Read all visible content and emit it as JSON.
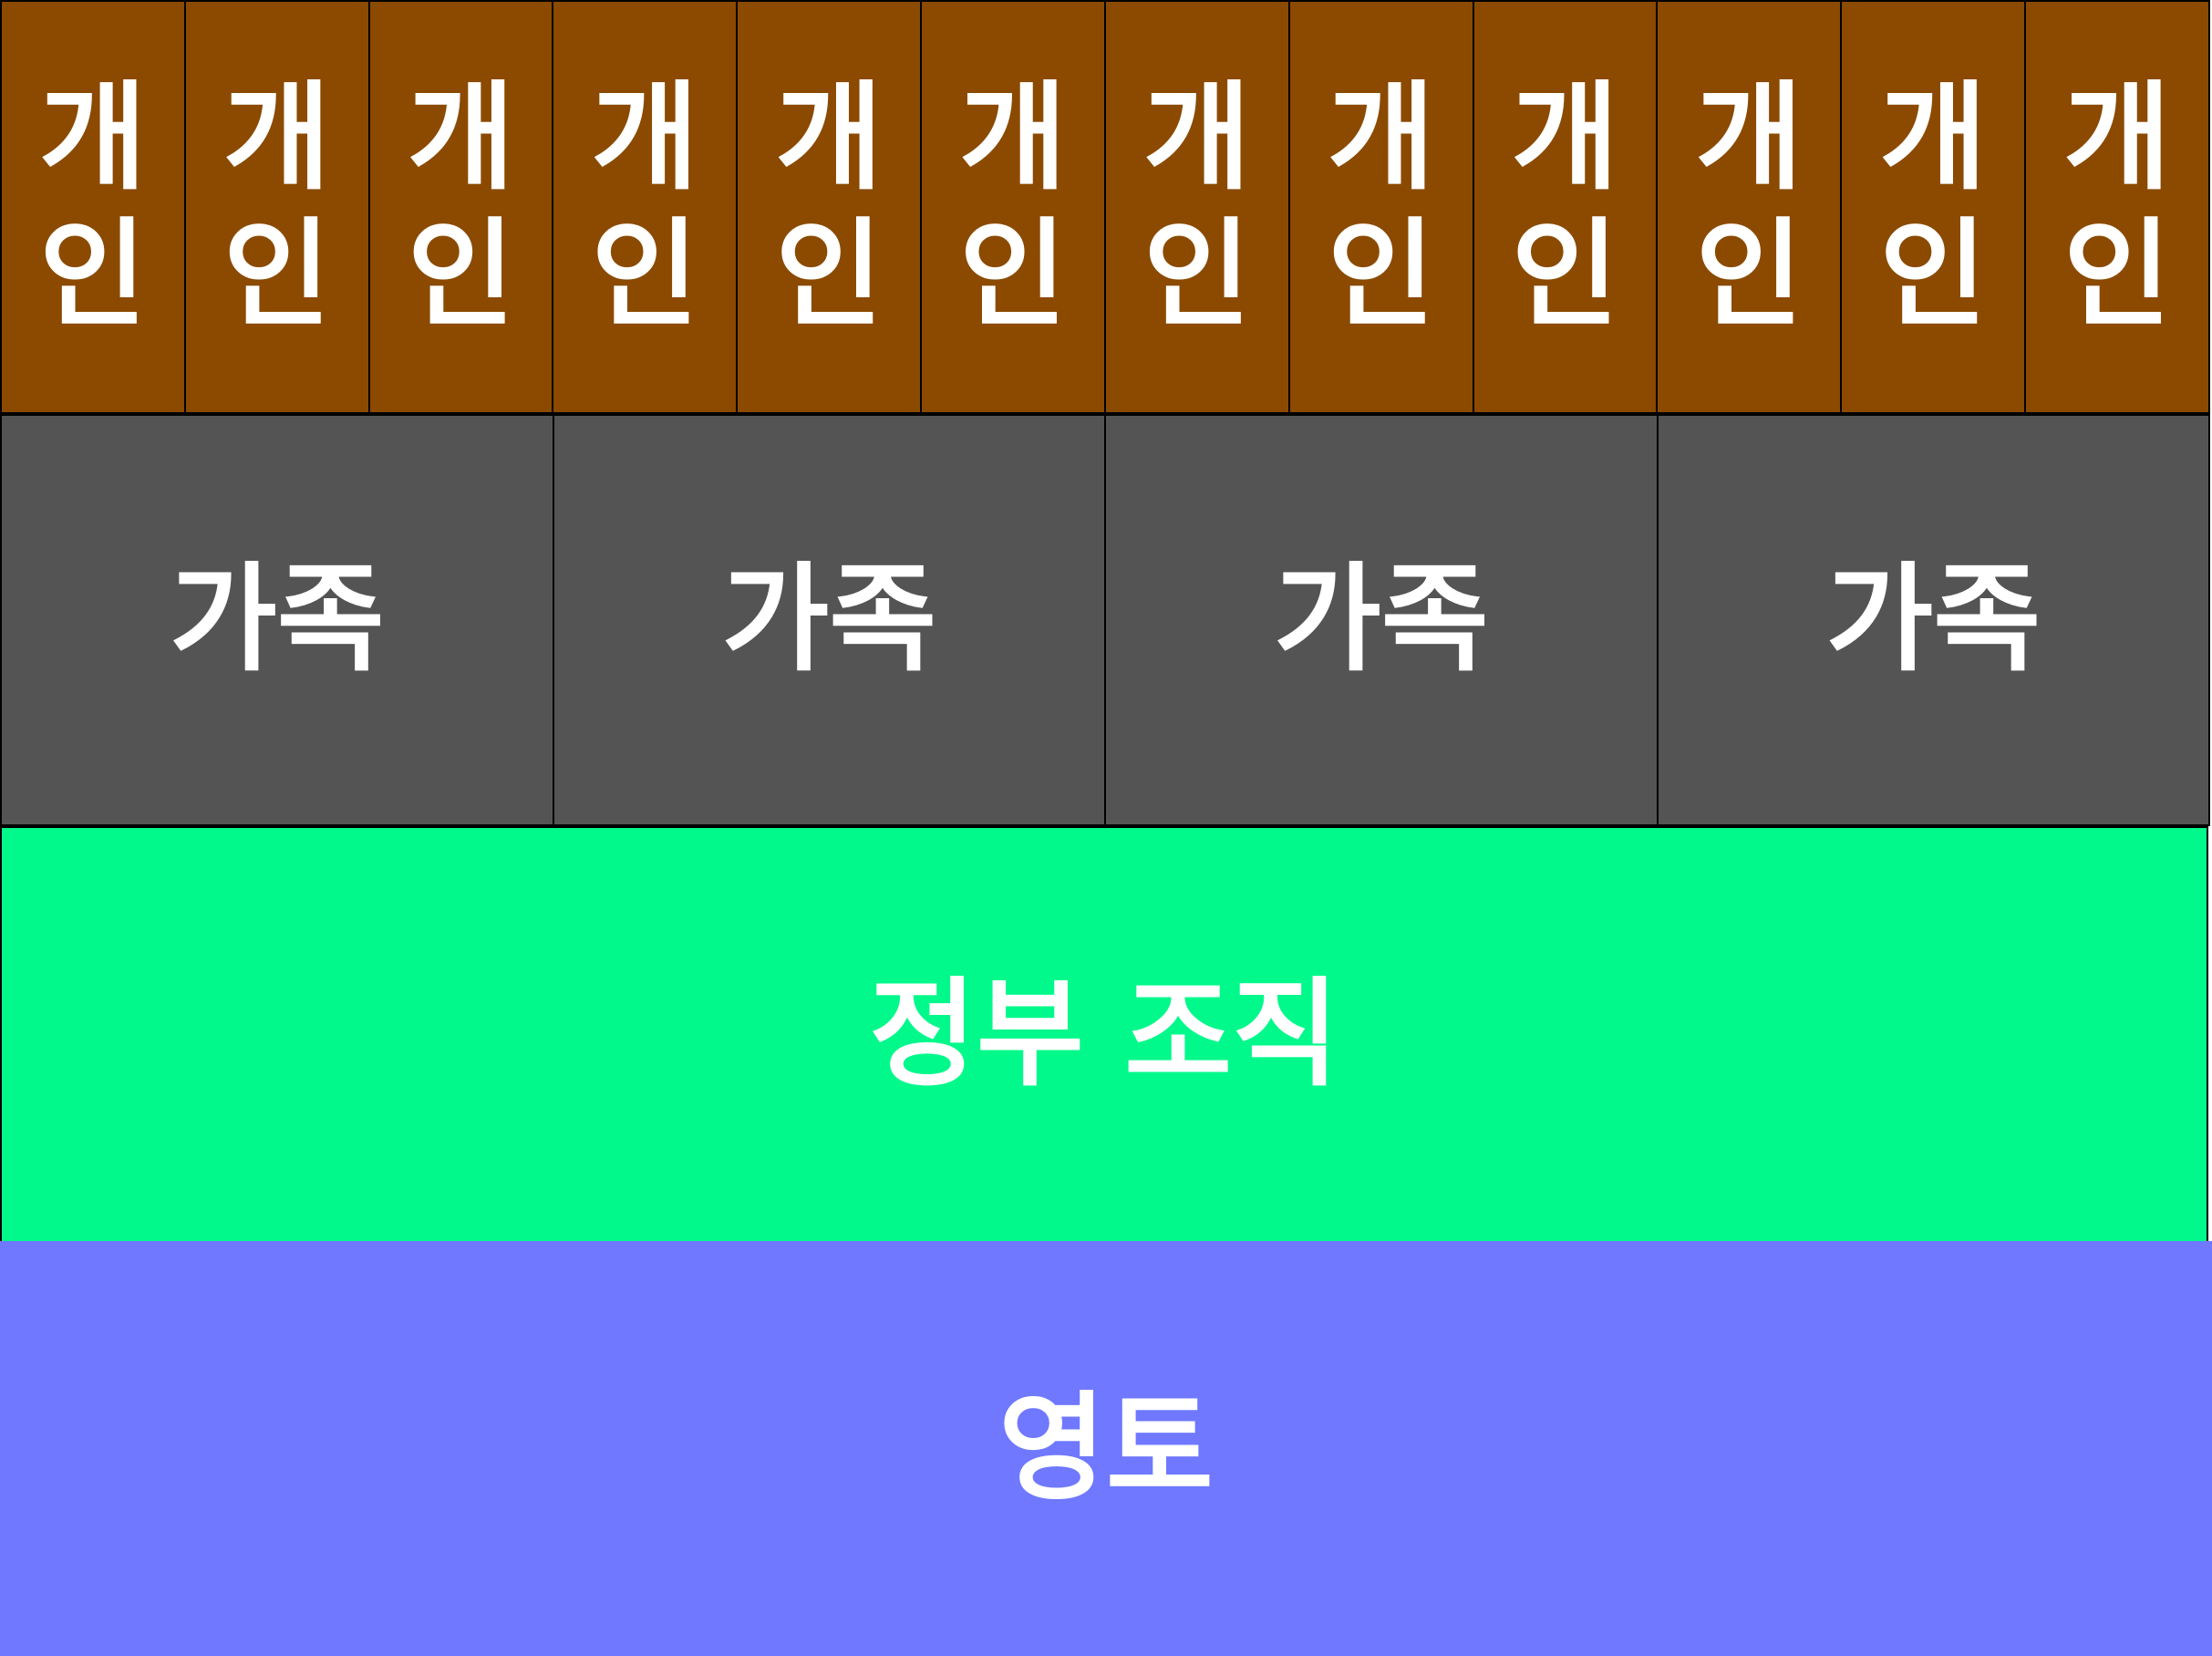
{
  "colors": {
    "individual": "#8b4a00",
    "family": "#545454",
    "government": "#00f98a",
    "territory": "#6f78ff",
    "border": "#000000",
    "text": "#ffffff"
  },
  "individuals": [
    {
      "label": "개인"
    },
    {
      "label": "개인"
    },
    {
      "label": "개인"
    },
    {
      "label": "개인"
    },
    {
      "label": "개인"
    },
    {
      "label": "개인"
    },
    {
      "label": "개인"
    },
    {
      "label": "개인"
    },
    {
      "label": "개인"
    },
    {
      "label": "개인"
    },
    {
      "label": "개인"
    },
    {
      "label": "개인"
    }
  ],
  "families": [
    {
      "label": "가족"
    },
    {
      "label": "가족"
    },
    {
      "label": "가족"
    },
    {
      "label": "가족"
    }
  ],
  "government": {
    "label": "정부 조직"
  },
  "territory": {
    "label": "영토"
  }
}
